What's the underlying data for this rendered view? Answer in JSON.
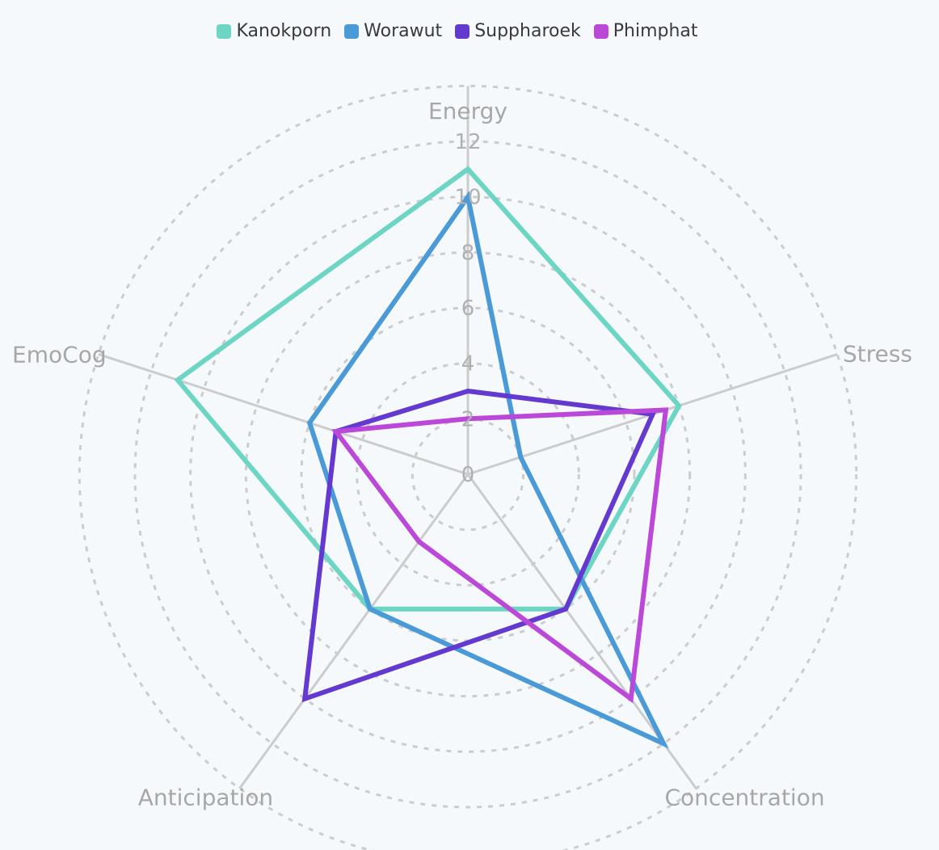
{
  "chart_data": {
    "type": "radar",
    "axes": [
      "Energy",
      "Stress",
      "Concentration",
      "Anticipation",
      "EmoCog"
    ],
    "ticks": [
      "0",
      "2",
      "4",
      "6",
      "8",
      "10",
      "12"
    ],
    "range": [
      0,
      12
    ],
    "grid": "dashed circles",
    "legend_position": "top-center",
    "series": [
      {
        "name": "Kanokporn",
        "color": "#6dd5c4",
        "values": [
          11,
          8,
          6,
          6,
          11
        ]
      },
      {
        "name": "Worawut",
        "color": "#4b9ad8",
        "values": [
          10,
          2,
          12,
          6,
          6
        ]
      },
      {
        "name": "Suppharoek",
        "color": "#6439d0",
        "values": [
          3,
          7,
          6,
          10,
          5
        ]
      },
      {
        "name": "Phimphat",
        "color": "#bb48d9",
        "values": [
          2,
          7.5,
          10,
          3,
          5
        ]
      }
    ]
  }
}
